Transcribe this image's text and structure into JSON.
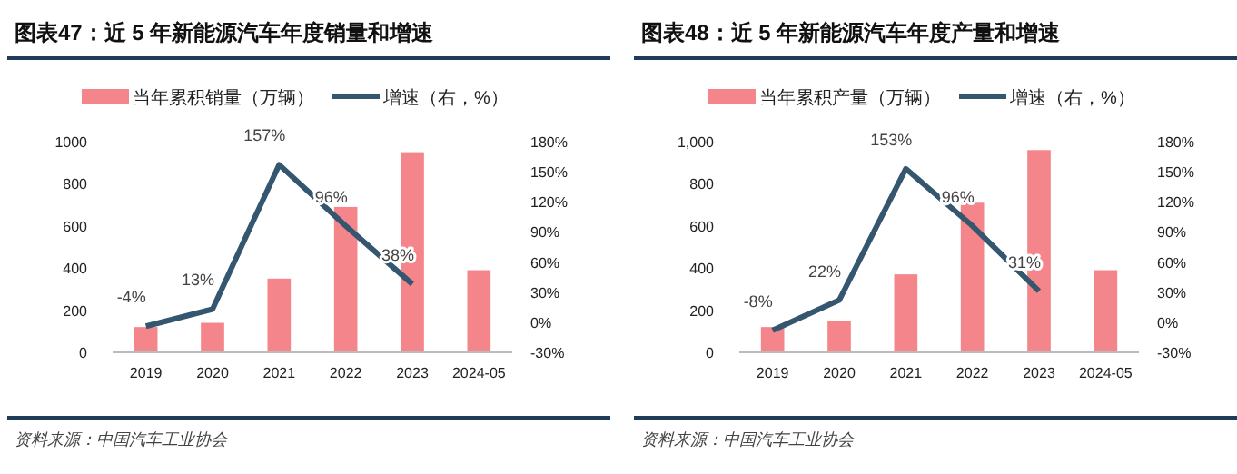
{
  "chart_data": [
    {
      "type": "bar",
      "title": "图表47：近 5 年新能源汽车年度销量和增速",
      "categories": [
        "2019",
        "2020",
        "2021",
        "2022",
        "2023",
        "2024-05"
      ],
      "series": [
        {
          "name": "当年累积销量（万辆）",
          "color": "#f4858a",
          "values": [
            120,
            140,
            350,
            690,
            950,
            390
          ]
        },
        {
          "name": "增速（右，%）",
          "type": "line",
          "axis": "y2",
          "color": "#34566f",
          "values": [
            -4,
            13,
            157,
            96,
            38,
            null
          ],
          "value_labels": [
            "-4%",
            "13%",
            "157%",
            "96%",
            "38%",
            null
          ]
        }
      ],
      "ylim": [
        0,
        1000
      ],
      "yticks": [
        0,
        200,
        400,
        600,
        800,
        1000
      ],
      "y2lim": [
        -30,
        180
      ],
      "y2ticks": [
        {
          "value": -30,
          "label": "-30%"
        },
        {
          "value": 0,
          "label": "0%"
        },
        {
          "value": 30,
          "label": "30%"
        },
        {
          "value": 60,
          "label": "60%"
        },
        {
          "value": 90,
          "label": "90%"
        },
        {
          "value": 120,
          "label": "120%"
        },
        {
          "value": 150,
          "label": "150%"
        },
        {
          "value": 180,
          "label": "180%"
        }
      ],
      "legend": "top",
      "annotations": [
        "资料来源：中国汽车工业协会"
      ]
    },
    {
      "type": "bar",
      "title": "图表48：近 5 年新能源汽车年度产量和增速",
      "categories": [
        "2019",
        "2020",
        "2021",
        "2022",
        "2023",
        "2024-05"
      ],
      "series": [
        {
          "name": "当年累积产量（万辆）",
          "color": "#f4858a",
          "values": [
            120,
            150,
            370,
            710,
            960,
            390
          ]
        },
        {
          "name": "增速（右，%）",
          "type": "line",
          "axis": "y2",
          "color": "#34566f",
          "values": [
            -8,
            22,
            153,
            96,
            31,
            null
          ],
          "value_labels": [
            "-8%",
            "22%",
            "153%",
            "96%",
            "31%",
            null
          ]
        }
      ],
      "ylim": [
        0,
        1000
      ],
      "yticks": [
        0,
        200,
        400,
        600,
        800,
        {
          "value": 1000,
          "label": "1,000"
        }
      ],
      "y2lim": [
        -30,
        180
      ],
      "y2ticks": [
        {
          "value": -30,
          "label": "-30%"
        },
        {
          "value": 0,
          "label": "0%"
        },
        {
          "value": 30,
          "label": "30%"
        },
        {
          "value": 60,
          "label": "60%"
        },
        {
          "value": 90,
          "label": "90%"
        },
        {
          "value": 120,
          "label": "120%"
        },
        {
          "value": 150,
          "label": "150%"
        },
        {
          "value": 180,
          "label": "180%"
        }
      ],
      "legend": "top",
      "annotations": [
        "资料来源：中国汽车工业协会"
      ]
    }
  ]
}
